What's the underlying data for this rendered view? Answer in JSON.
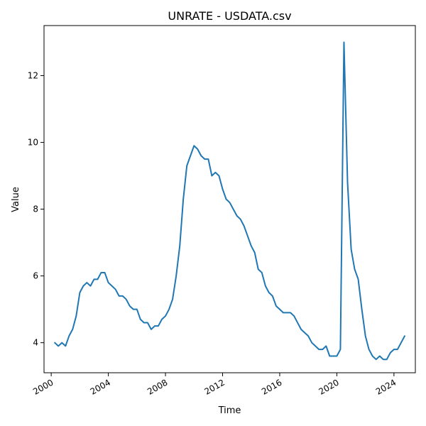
{
  "chart_data": {
    "type": "line",
    "title": "UNRATE - USDATA.csv",
    "xlabel": "Time",
    "ylabel": "Value",
    "xlim": [
      "1999-07-01",
      "2025-07-01"
    ],
    "ylim": [
      3.1,
      13.5
    ],
    "x_ticks": [
      {
        "date": "2000-01-01",
        "label": "2000"
      },
      {
        "date": "2004-01-01",
        "label": "2004"
      },
      {
        "date": "2008-01-01",
        "label": "2008"
      },
      {
        "date": "2012-01-01",
        "label": "2012"
      },
      {
        "date": "2016-01-01",
        "label": "2016"
      },
      {
        "date": "2020-01-01",
        "label": "2020"
      },
      {
        "date": "2024-01-01",
        "label": "2024"
      }
    ],
    "y_ticks": [
      {
        "value": 4,
        "label": "4"
      },
      {
        "value": 6,
        "label": "6"
      },
      {
        "value": 8,
        "label": "8"
      },
      {
        "value": 10,
        "label": "10"
      },
      {
        "value": 12,
        "label": "12"
      }
    ],
    "grid": false,
    "legend": "none",
    "line_color": "#1f77b4",
    "series": [
      {
        "x": [
          "2000-04-01",
          "2000-07-01",
          "2000-10-01",
          "2001-01-01",
          "2001-04-01",
          "2001-07-01",
          "2001-10-01",
          "2002-01-01",
          "2002-04-01",
          "2002-07-01",
          "2002-10-01",
          "2003-01-01",
          "2003-04-01",
          "2003-07-01",
          "2003-10-01",
          "2004-01-01",
          "2004-04-01",
          "2004-07-01",
          "2004-10-01",
          "2005-01-01",
          "2005-04-01",
          "2005-07-01",
          "2005-10-01",
          "2006-01-01",
          "2006-04-01",
          "2006-07-01",
          "2006-10-01",
          "2007-01-01",
          "2007-04-01",
          "2007-07-01",
          "2007-10-01",
          "2008-01-01",
          "2008-04-01",
          "2008-07-01",
          "2008-10-01",
          "2009-01-01",
          "2009-04-01",
          "2009-07-01",
          "2009-10-01",
          "2010-01-01",
          "2010-04-01",
          "2010-07-01",
          "2010-10-01",
          "2011-01-01",
          "2011-04-01",
          "2011-07-01",
          "2011-10-01",
          "2012-01-01",
          "2012-04-01",
          "2012-07-01",
          "2012-10-01",
          "2013-01-01",
          "2013-04-01",
          "2013-07-01",
          "2013-10-01",
          "2014-01-01",
          "2014-04-01",
          "2014-07-01",
          "2014-10-01",
          "2015-01-01",
          "2015-04-01",
          "2015-07-01",
          "2015-10-01",
          "2016-01-01",
          "2016-04-01",
          "2016-07-01",
          "2016-10-01",
          "2017-01-01",
          "2017-04-01",
          "2017-07-01",
          "2017-10-01",
          "2018-01-01",
          "2018-04-01",
          "2018-07-01",
          "2018-10-01",
          "2019-01-01",
          "2019-04-01",
          "2019-07-01",
          "2019-10-01",
          "2020-01-01",
          "2020-04-01",
          "2020-07-01",
          "2020-10-01",
          "2021-01-01",
          "2021-04-01",
          "2021-07-01",
          "2021-10-01",
          "2022-01-01",
          "2022-04-01",
          "2022-07-01",
          "2022-10-01",
          "2023-01-01",
          "2023-04-01",
          "2023-07-01",
          "2023-10-01",
          "2024-01-01",
          "2024-04-01",
          "2024-07-01",
          "2024-10-01"
        ],
        "y": [
          4.0,
          3.9,
          4.0,
          3.9,
          4.2,
          4.4,
          4.8,
          5.5,
          5.7,
          5.8,
          5.7,
          5.9,
          5.9,
          6.1,
          6.1,
          5.8,
          5.7,
          5.6,
          5.4,
          5.4,
          5.3,
          5.1,
          5.0,
          5.0,
          4.7,
          4.6,
          4.6,
          4.4,
          4.5,
          4.5,
          4.7,
          4.8,
          5.0,
          5.3,
          6.0,
          6.9,
          8.3,
          9.3,
          9.6,
          9.9,
          9.8,
          9.6,
          9.5,
          9.5,
          9.0,
          9.1,
          9.0,
          8.6,
          8.3,
          8.2,
          8.0,
          7.8,
          7.7,
          7.5,
          7.2,
          6.9,
          6.7,
          6.2,
          6.1,
          5.7,
          5.5,
          5.4,
          5.1,
          5.0,
          4.9,
          4.9,
          4.9,
          4.8,
          4.6,
          4.4,
          4.3,
          4.2,
          4.0,
          3.9,
          3.8,
          3.8,
          3.9,
          3.6,
          3.6,
          3.6,
          3.8,
          13.0,
          8.8,
          6.8,
          6.2,
          5.9,
          5.0,
          4.2,
          3.8,
          3.6,
          3.5,
          3.6,
          3.5,
          3.5,
          3.7,
          3.8,
          3.8,
          4.0,
          4.2
        ]
      }
    ]
  }
}
